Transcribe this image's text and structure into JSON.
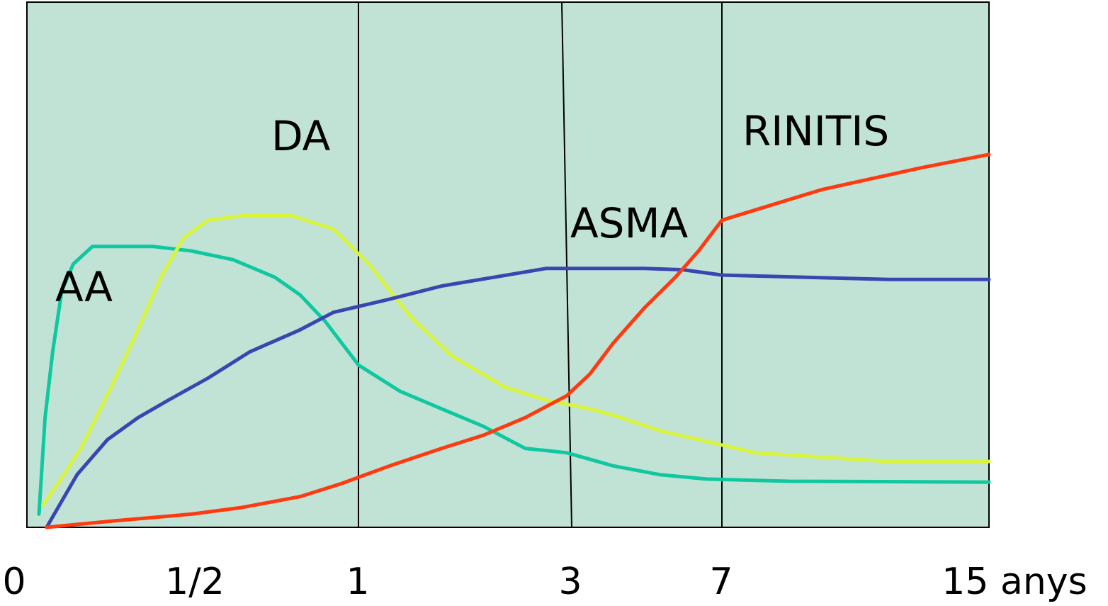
{
  "chart_data": {
    "type": "line",
    "title": "",
    "xlabel": "",
    "ylabel": "",
    "x_ticks": [
      "0",
      "1/2",
      "1",
      "3",
      "7",
      "15 anys"
    ],
    "background_color": "#c1e3d6",
    "grid": false,
    "legend": "inline-labels",
    "ylim": [
      0,
      100
    ],
    "series": [
      {
        "name": "AA",
        "color": "#10c8a0",
        "points": [
          [
            0.0,
            3
          ],
          [
            0.08,
            25
          ],
          [
            0.18,
            40
          ],
          [
            0.3,
            54
          ],
          [
            0.45,
            60
          ],
          [
            0.7,
            64
          ],
          [
            1.0,
            64
          ],
          [
            1.5,
            64
          ],
          [
            2.0,
            63
          ],
          [
            2.5,
            61
          ],
          [
            3.0,
            57
          ],
          [
            3.3,
            53
          ],
          [
            3.6,
            47
          ],
          [
            4.0,
            37
          ],
          [
            4.4,
            31
          ],
          [
            4.8,
            27
          ],
          [
            5.2,
            23
          ],
          [
            5.6,
            18
          ],
          [
            6.0,
            17
          ],
          [
            6.6,
            14
          ],
          [
            7.2,
            12
          ],
          [
            7.8,
            11
          ],
          [
            8.2,
            10.5
          ],
          [
            8.8,
            10.3
          ]
        ]
      },
      {
        "name": "DA",
        "color": "#d8f43c",
        "points": [
          [
            0.05,
            5
          ],
          [
            0.25,
            10
          ],
          [
            0.55,
            18
          ],
          [
            0.95,
            32
          ],
          [
            1.3,
            45
          ],
          [
            1.6,
            57
          ],
          [
            1.9,
            66
          ],
          [
            2.2,
            70
          ],
          [
            2.6,
            71
          ],
          [
            3.2,
            71
          ],
          [
            3.7,
            68
          ],
          [
            4.1,
            60
          ],
          [
            4.5,
            48
          ],
          [
            4.9,
            39
          ],
          [
            5.4,
            32
          ],
          [
            5.8,
            29
          ],
          [
            6.3,
            27
          ],
          [
            6.7,
            25
          ],
          [
            7.2,
            22
          ],
          [
            7.7,
            20
          ],
          [
            8.1,
            17
          ],
          [
            8.5,
            15
          ],
          [
            8.8,
            15
          ]
        ]
      },
      {
        "name": "ASMA",
        "color": "#3a46b0",
        "points": [
          [
            0.1,
            0
          ],
          [
            0.5,
            12
          ],
          [
            0.9,
            20
          ],
          [
            1.3,
            25
          ],
          [
            1.7,
            29
          ],
          [
            2.2,
            34
          ],
          [
            2.7,
            40
          ],
          [
            3.3,
            45
          ],
          [
            3.7,
            49
          ],
          [
            4.3,
            52
          ],
          [
            4.8,
            55
          ],
          [
            5.3,
            57
          ],
          [
            5.8,
            59
          ],
          [
            6.2,
            59
          ],
          [
            6.6,
            59
          ],
          [
            7.0,
            59
          ],
          [
            7.5,
            58.7
          ],
          [
            8.0,
            57.5
          ],
          [
            8.5,
            56.5
          ],
          [
            8.8,
            56.5
          ]
        ]
      },
      {
        "name": "RINITIS",
        "color": "#ff3a10",
        "points": [
          [
            0.1,
            0
          ],
          [
            1.0,
            1.5
          ],
          [
            2.0,
            3
          ],
          [
            2.6,
            4.5
          ],
          [
            3.3,
            7
          ],
          [
            3.8,
            10
          ],
          [
            4.3,
            14
          ],
          [
            4.8,
            18
          ],
          [
            5.2,
            21
          ],
          [
            5.6,
            25
          ],
          [
            6.0,
            30
          ],
          [
            6.3,
            35
          ],
          [
            6.6,
            42
          ],
          [
            7.0,
            50
          ],
          [
            7.4,
            57
          ],
          [
            7.7,
            63
          ],
          [
            8.0,
            70
          ],
          [
            8.3,
            77
          ],
          [
            8.6,
            82
          ],
          [
            8.8,
            85
          ]
        ]
      }
    ],
    "series_label_text": {
      "AA": "AA",
      "DA": "DA",
      "ASMA": "ASMA",
      "RINITIS": "RINITIS"
    }
  }
}
